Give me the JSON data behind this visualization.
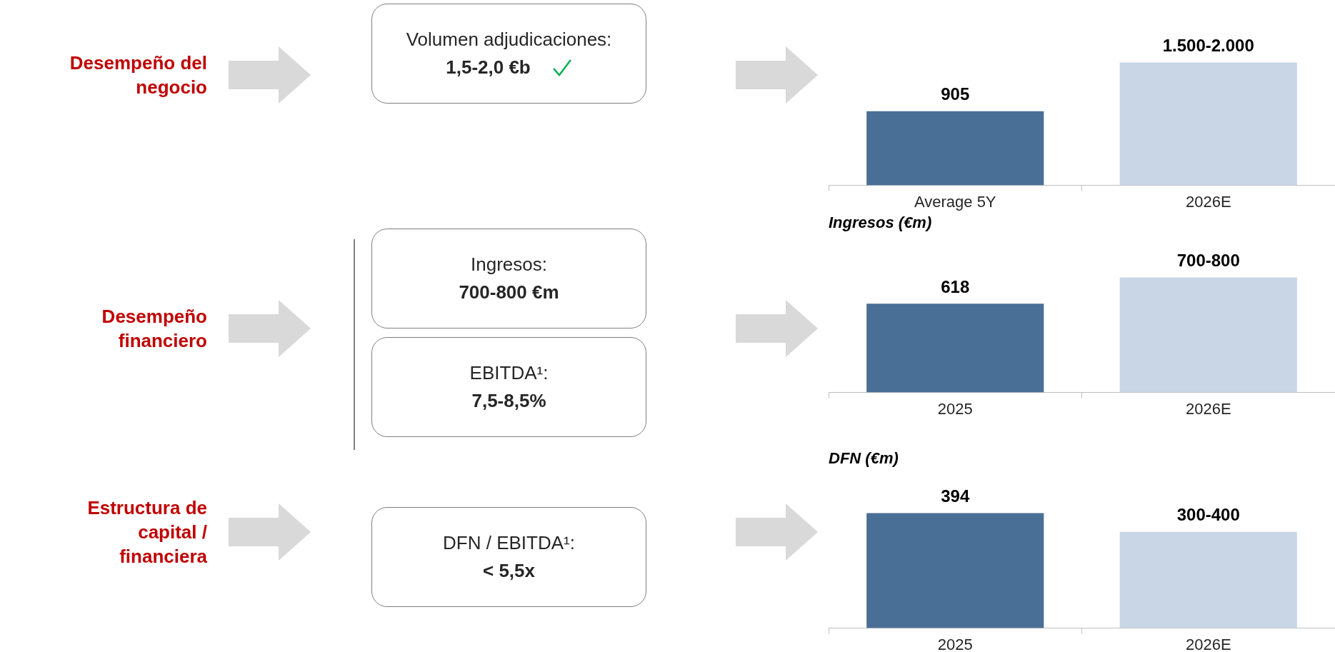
{
  "chart_data": [
    {
      "type": "other",
      "title": "Desempeño del negocio"
    },
    {
      "type": "other",
      "title": "Volumen adjudicaciones:",
      "subtitle": "1,5-2,0 €b"
    },
    {
      "type": "bar",
      "categories": [
        "Average 5Y",
        "2026E"
      ],
      "values": [
        905,
        1500
      ],
      "colors": [
        "#4a6f96",
        "#c9d6e5"
      ],
      "value_labels": [
        "905",
        "1.500-2.000"
      ]
    },
    {
      "type": "other",
      "title": "Desempeño financiero"
    },
    {
      "type": "other",
      "title": "Ingresos:",
      "subtitle": "700-800 €m"
    },
    {
      "type": "other",
      "title": "EBITDA¹:",
      "subtitle": "7,5-8,5%"
    },
    {
      "type": "bar",
      "title": "Ingresos (€m)",
      "categories": [
        "2025",
        "2026E"
      ],
      "values": [
        618,
        800
      ],
      "colors": [
        "#4a6f96",
        "#c9d6e5"
      ],
      "value_labels": [
        "618",
        "700-800"
      ]
    },
    {
      "type": "other",
      "title": "Estructura de capital / financiera"
    },
    {
      "type": "other",
      "title": "DFN / EBITDA¹:",
      "subtitle": "< 5,5x"
    },
    {
      "type": "bar",
      "title": "DFN (€m)",
      "categories": [
        "2025",
        "2026E"
      ],
      "values": [
        394,
        330
      ],
      "colors": [
        "#4a6f96",
        "#c9d6e5"
      ],
      "value_labels": [
        "394",
        "300-400"
      ]
    }
  ]
}
